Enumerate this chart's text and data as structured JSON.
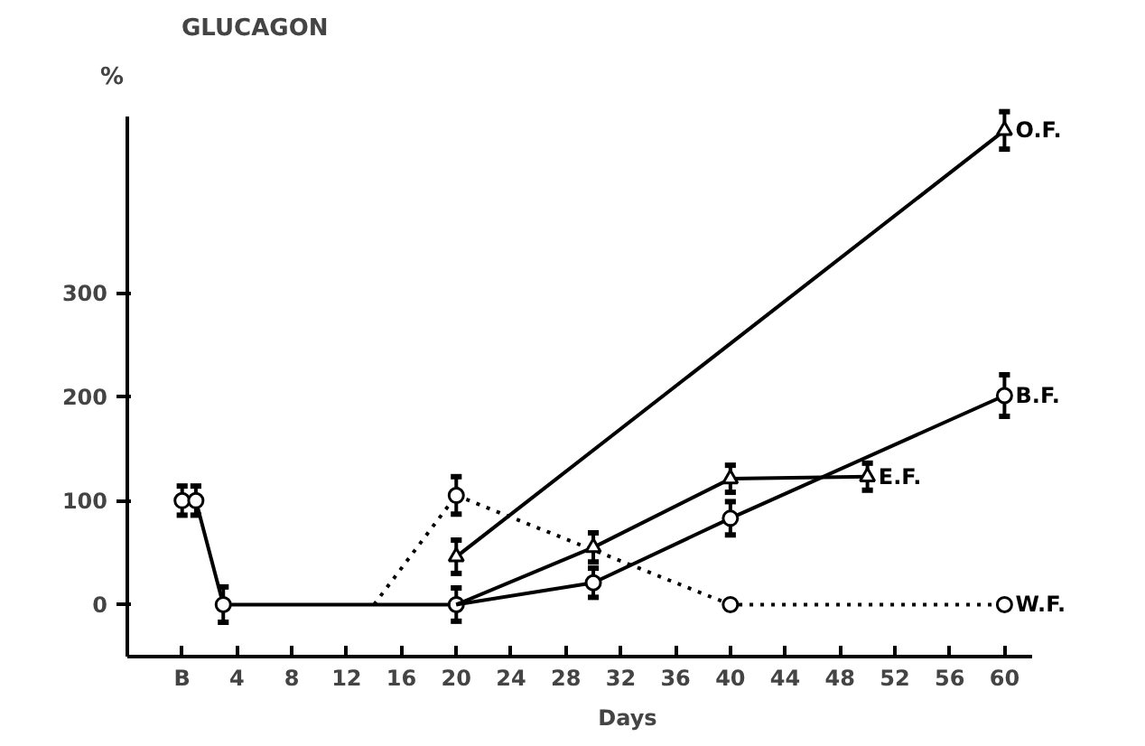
{
  "chart_data": {
    "type": "line",
    "title": "GLUCAGON",
    "xlabel": "Days",
    "ylabel": "%",
    "xlim": [
      -4,
      62
    ],
    "xticks": [
      {
        "value": 0,
        "label": "B"
      },
      4,
      8,
      12,
      16,
      20,
      24,
      28,
      32,
      36,
      40,
      44,
      48,
      52,
      56,
      60
    ],
    "ylim": [
      -50,
      470
    ],
    "yticks": [
      0,
      100,
      200,
      300
    ],
    "grid": false,
    "legend": false,
    "series": [
      {
        "color": "#000000",
        "x": [
          0,
          1,
          3,
          20
        ],
        "values": [
          100,
          100,
          0,
          0
        ],
        "errors": [
          14,
          14,
          17,
          16
        ],
        "marker": "circle",
        "line_style": "solid"
      },
      {
        "color": "#000000",
        "x": [
          14,
          20
        ],
        "values": [
          0,
          105
        ],
        "line_style": "dotted"
      },
      {
        "color": "#000000",
        "x": [
          20,
          30
        ],
        "values": [
          0,
          55
        ],
        "line_style": "solid"
      },
      {
        "color": "#000000",
        "x": [
          20,
          30
        ],
        "values": [
          0,
          21
        ],
        "line_style": "solid"
      },
      {
        "name": "W.F.",
        "color": "#000000",
        "x": [
          20,
          40,
          60
        ],
        "values": [
          105,
          0,
          0
        ],
        "errors": [
          18,
          null,
          null
        ],
        "marker": "circle",
        "line_style": "dotted"
      },
      {
        "name": "O.F.",
        "color": "#000000",
        "x": [
          20,
          60
        ],
        "values": [
          46,
          456
        ],
        "errors": [
          16,
          18
        ],
        "marker": "triangle",
        "line_style": "solid"
      },
      {
        "name": "E.F.",
        "color": "#000000",
        "x": [
          30,
          40,
          50
        ],
        "values": [
          55,
          121,
          123
        ],
        "errors": [
          14,
          13,
          13
        ],
        "marker": "triangle",
        "line_style": "solid"
      },
      {
        "name": "B.F.",
        "color": "#000000",
        "x": [
          30,
          40,
          60
        ],
        "values": [
          21,
          83,
          201
        ],
        "errors": [
          14,
          16,
          20
        ],
        "marker": "circle",
        "line_style": "solid"
      }
    ]
  }
}
